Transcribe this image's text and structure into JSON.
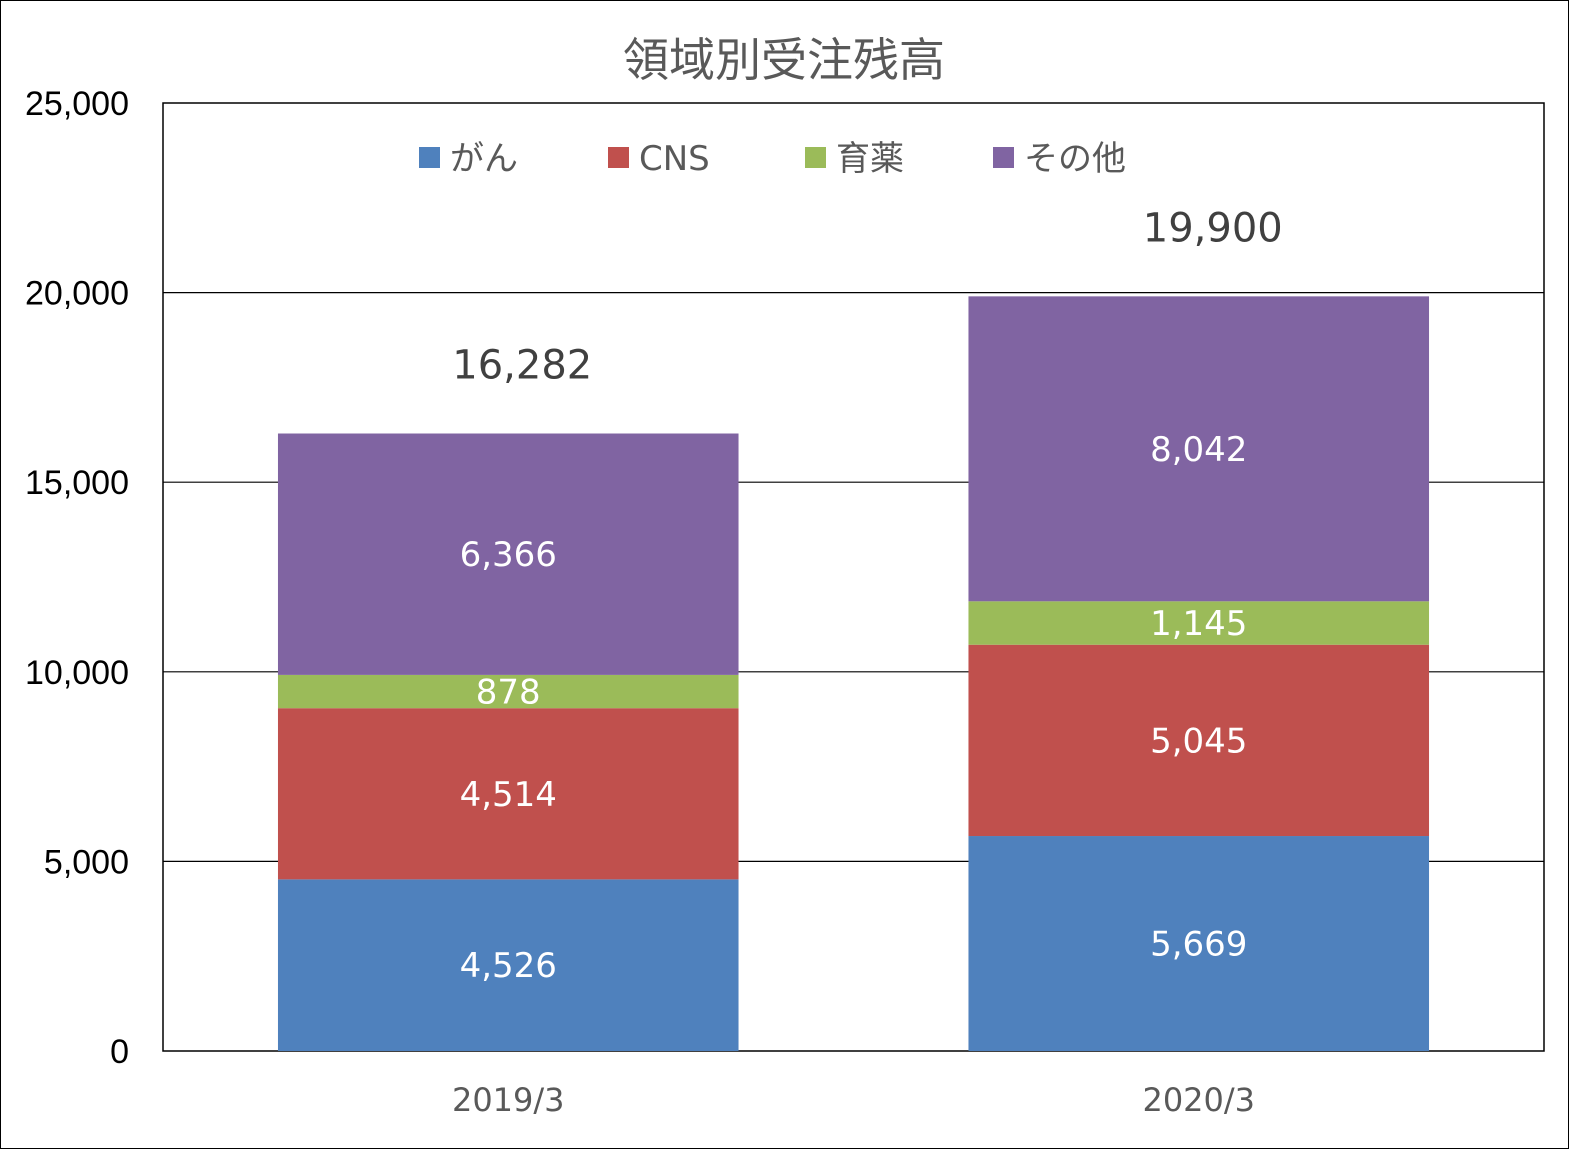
{
  "chart_data": {
    "type": "bar",
    "stacked": true,
    "title": "領域別受注残高",
    "categories": [
      "2019/3",
      "2020/3"
    ],
    "series": [
      {
        "name": "がん",
        "values": [
          4526,
          5669
        ],
        "labels": [
          "4,526",
          "5,669"
        ],
        "color": "#4F81BD"
      },
      {
        "name": "CNS",
        "values": [
          4514,
          5045
        ],
        "labels": [
          "4,514",
          "5,045"
        ],
        "color": "#C0504D"
      },
      {
        "name": "育薬",
        "values": [
          878,
          1145
        ],
        "labels": [
          "878",
          "1,145"
        ],
        "color": "#9BBB59"
      },
      {
        "name": "その他",
        "values": [
          6366,
          8042
        ],
        "labels": [
          "6,366",
          "8,042"
        ],
        "color": "#8064A2"
      }
    ],
    "totals": [
      16282,
      19900
    ],
    "total_labels": [
      "16,282",
      "19,900"
    ],
    "ylim": [
      0,
      25000
    ],
    "yticks": [
      0,
      5000,
      10000,
      15000,
      20000,
      25000
    ],
    "ytick_labels": [
      "0",
      "5,000",
      "10,000",
      "15,000",
      "20,000",
      "25,000"
    ],
    "grid": true,
    "legend_position": "top"
  }
}
